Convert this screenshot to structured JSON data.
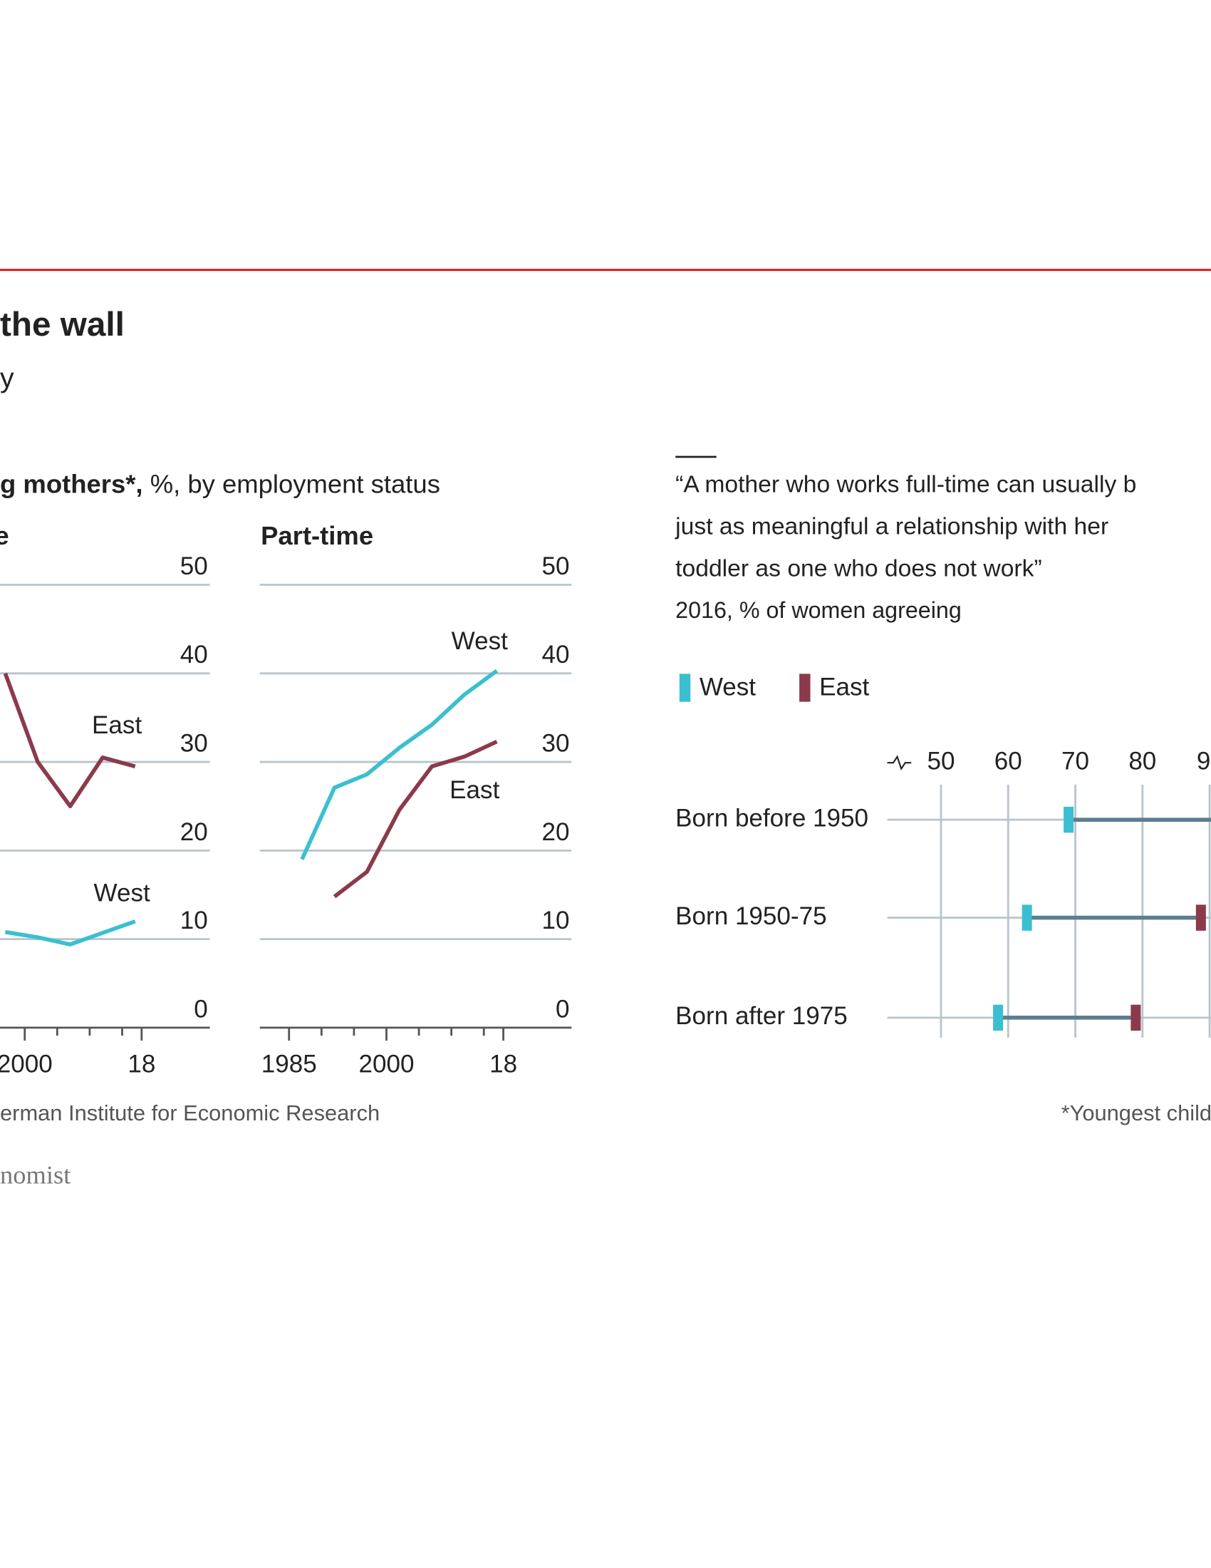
{
  "header": {
    "title": "the wall",
    "subtitle": "y",
    "panel_heading": "g mothers*,",
    "panel_heading_units": "%, by employment status"
  },
  "chart_data": [
    {
      "type": "line",
      "title": "e",
      "x": [
        1997,
        2002,
        2007,
        2012,
        2017
      ],
      "series": [
        {
          "name": "East",
          "color": "#8b3a4c",
          "values": [
            40,
            30,
            25,
            30.5,
            29.5
          ]
        },
        {
          "name": "West",
          "color": "#3bbfd0",
          "values": [
            10.8,
            10.2,
            9.4,
            10.7,
            12
          ]
        }
      ],
      "xlim": [
        1980.5,
        2028.5
      ],
      "xticks": [
        2000,
        {
          "value": 2018,
          "label": "18"
        }
      ],
      "xminor_ticks": [
        2005,
        2010,
        2015
      ],
      "ylim": [
        0,
        50
      ],
      "yticks": [
        0,
        10,
        20,
        30,
        40,
        50
      ],
      "grid": true
    },
    {
      "type": "line",
      "title": "Part-time",
      "x": [
        1987,
        1992,
        1997,
        2002,
        2007,
        2012,
        2017
      ],
      "series": [
        {
          "name": "West",
          "color": "#3bbfd0",
          "values": [
            19,
            27.1,
            28.6,
            31.6,
            34.2,
            37.6,
            40.3
          ]
        },
        {
          "name": "East",
          "color": "#8b3a4c",
          "values": [
            null,
            14.8,
            17.6,
            24.6,
            29.5,
            30.6,
            32.3
          ]
        }
      ],
      "xlim": [
        1980.5,
        2028.5
      ],
      "xticks": [
        1985,
        2000,
        {
          "value": 2018,
          "label": "18"
        }
      ],
      "xminor_ticks": [
        1990,
        1995,
        2005,
        2010,
        2015
      ],
      "ylim": [
        0,
        50
      ],
      "yticks": [
        0,
        10,
        20,
        30,
        40,
        50
      ],
      "grid": true
    },
    {
      "type": "dot-range",
      "title": [
        "“A mother who works full-time can usually b",
        "just as meaningful a relationship with her",
        "toddler as one who does not work”"
      ],
      "subtitle": "2016, % of women agreeing",
      "categories": [
        "Born before 1950",
        "Born 1950-75",
        "Born after 1975"
      ],
      "series": [
        {
          "name": "West",
          "color": "#3bbfd0",
          "values": [
            69,
            62.8,
            58.5
          ]
        },
        {
          "name": "East",
          "color": "#8b3a4c",
          "values": [
            null,
            88.7,
            79
          ]
        }
      ],
      "xlim": [
        42,
        90.2
      ],
      "xticks": [
        50,
        60,
        70,
        80,
        {
          "value": 90,
          "label": "9"
        }
      ],
      "grid": true,
      "legend": "top-left"
    }
  ],
  "footer": {
    "source": "erman Institute for Economic Research",
    "note": "*Youngest child",
    "logo": "nomist"
  }
}
